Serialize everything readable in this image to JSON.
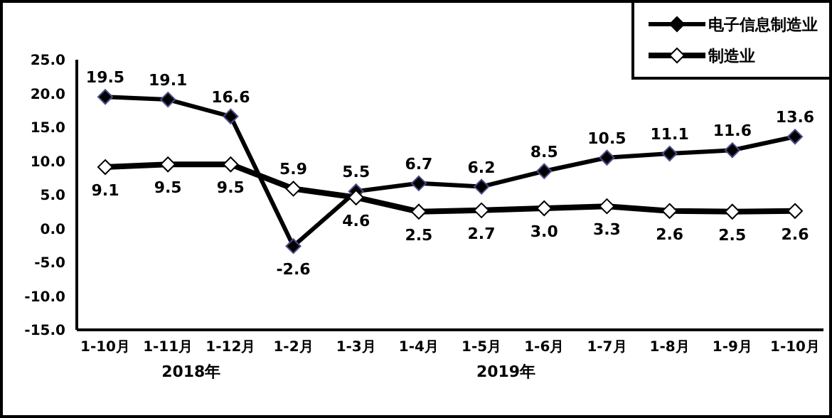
{
  "chart_data": {
    "type": "line",
    "categories": [
      "1-10月",
      "1-11月",
      "1-12月",
      "1-2月",
      "1-3月",
      "1-4月",
      "1-5月",
      "1-6月",
      "1-7月",
      "1-8月",
      "1-9月",
      "1-10月"
    ],
    "series": [
      {
        "name": "电子信息制造业",
        "color": "#000000",
        "values": [
          19.5,
          19.1,
          16.6,
          -2.6,
          5.5,
          6.7,
          6.2,
          8.5,
          10.5,
          11.1,
          11.6,
          13.6
        ],
        "value_labels": [
          "19.5",
          "19.1",
          "16.6",
          "-2.6",
          "5.5",
          "6.7",
          "6.2",
          "8.5",
          "10.5",
          "11.1",
          "11.6",
          "13.6"
        ]
      },
      {
        "name": "制造业",
        "color": "#000000",
        "values": [
          9.1,
          9.5,
          9.5,
          5.9,
          4.6,
          2.5,
          2.7,
          3.0,
          3.3,
          2.6,
          2.5,
          2.6
        ],
        "value_labels": [
          "9.1",
          "9.5",
          "9.5",
          "5.9",
          "4.6",
          "2.5",
          "2.7",
          "3.0",
          "3.3",
          "2.6",
          "2.5",
          "2.6"
        ]
      }
    ],
    "ylim": [
      -15,
      25
    ],
    "yticks": [
      {
        "value": -15,
        "label": "-15.0"
      },
      {
        "value": -10,
        "label": "-10.0"
      },
      {
        "value": -5,
        "label": "-5.0"
      },
      {
        "value": 0,
        "label": "0.0"
      },
      {
        "value": 5,
        "label": "5.0"
      },
      {
        "value": 10,
        "label": "10.0"
      },
      {
        "value": 15,
        "label": "15.0"
      },
      {
        "value": 20,
        "label": "20.0"
      },
      {
        "value": 25,
        "label": "25.0"
      }
    ],
    "annotations": [
      "2018年",
      "2019年"
    ],
    "marker": "diamond",
    "legend": "top right",
    "grid": false
  }
}
